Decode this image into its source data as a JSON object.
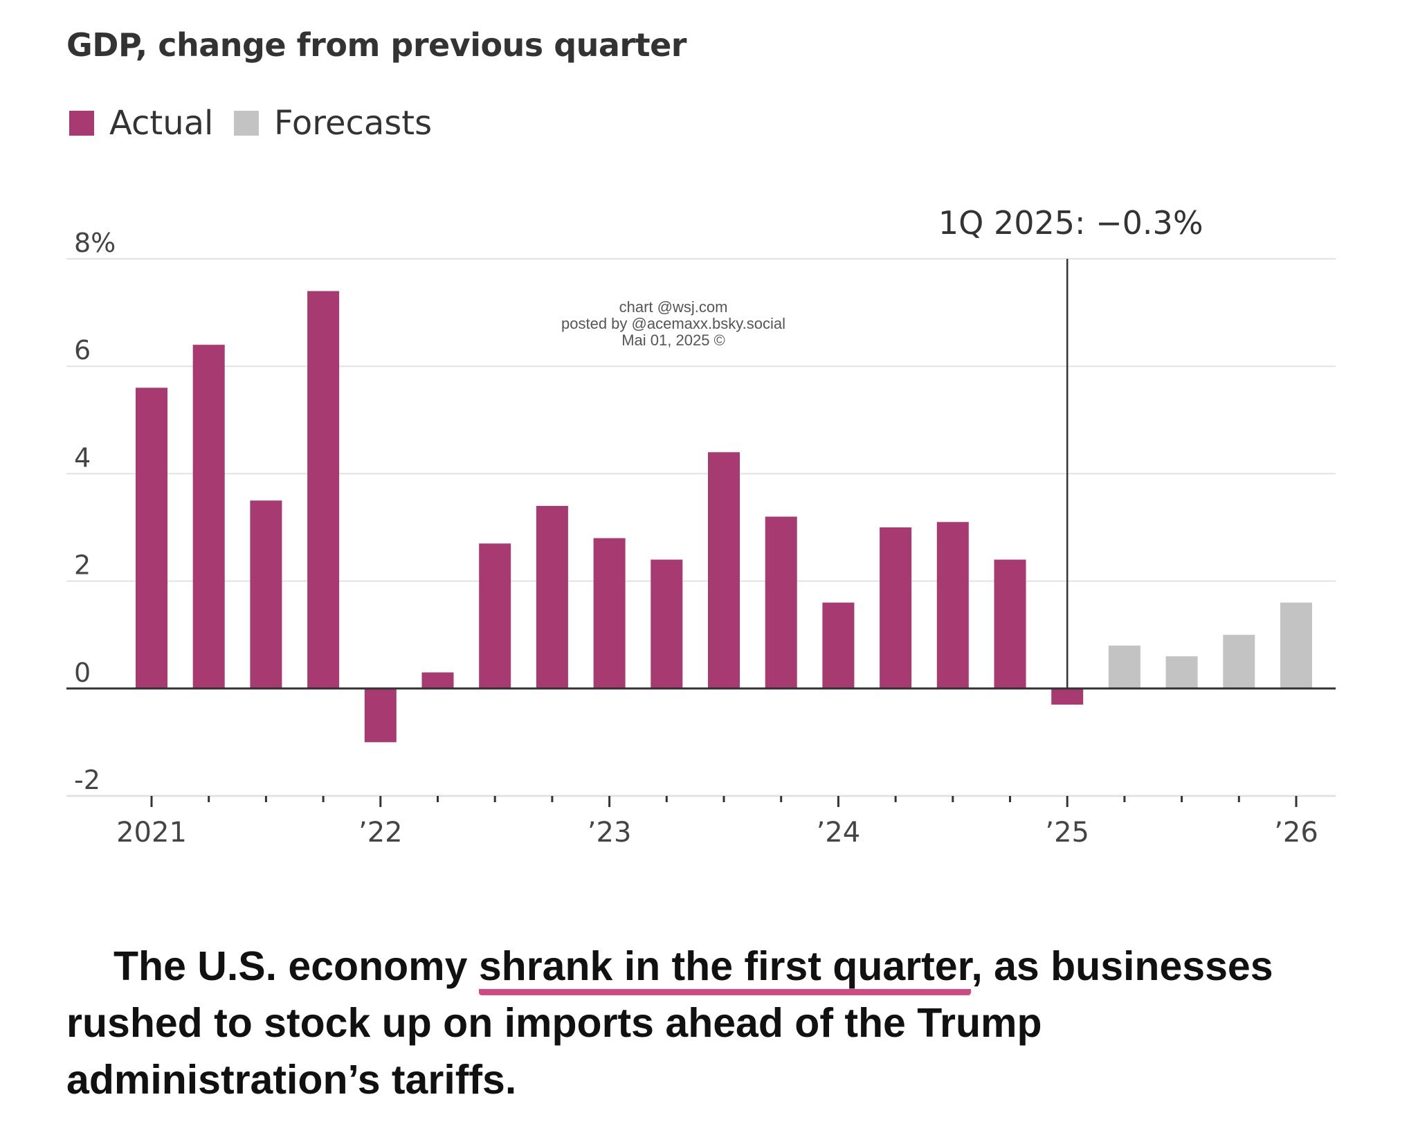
{
  "colors": {
    "actual": "#a63a71",
    "forecast": "#c3c3c3",
    "grid": "#e2e2e2",
    "axis": "#333333",
    "highlight_underline": "#d04a82"
  },
  "chart_data": {
    "type": "bar",
    "title": "GDP, change from previous quarter",
    "legend": [
      {
        "name": "Actual",
        "color": "#a63a71"
      },
      {
        "name": "Forecasts",
        "color": "#c3c3c3"
      }
    ],
    "legend_placement": "top-left",
    "ylim": [
      -2,
      8
    ],
    "yticks": [
      {
        "value": 8,
        "label": "8%"
      },
      {
        "value": 6,
        "label": "6"
      },
      {
        "value": 4,
        "label": "4"
      },
      {
        "value": 2,
        "label": "2"
      },
      {
        "value": 0,
        "label": "0"
      },
      {
        "value": -2,
        "label": "-2"
      }
    ],
    "xtick_labels": [
      {
        "quarter_index": 0,
        "label": "2021"
      },
      {
        "quarter_index": 4,
        "label": "’22"
      },
      {
        "quarter_index": 8,
        "label": "’23"
      },
      {
        "quarter_index": 12,
        "label": "’24"
      },
      {
        "quarter_index": 16,
        "label": "’25"
      },
      {
        "quarter_index": 20,
        "label": "’26"
      }
    ],
    "grid": true,
    "series": [
      {
        "name": "Actual",
        "color": "#a63a71",
        "x": [
          "1Q 2021",
          "2Q 2021",
          "3Q 2021",
          "4Q 2021",
          "1Q 2022",
          "2Q 2022",
          "3Q 2022",
          "4Q 2022",
          "1Q 2023",
          "2Q 2023",
          "3Q 2023",
          "4Q 2023",
          "1Q 2024",
          "2Q 2024",
          "3Q 2024",
          "4Q 2024",
          "1Q 2025"
        ],
        "values": [
          5.6,
          6.4,
          3.5,
          7.4,
          -1.0,
          0.3,
          2.7,
          3.4,
          2.8,
          2.4,
          4.4,
          3.2,
          1.6,
          3.0,
          3.1,
          2.4,
          -0.3
        ]
      },
      {
        "name": "Forecasts",
        "color": "#c3c3c3",
        "x": [
          "2Q 2025",
          "3Q 2025",
          "4Q 2025",
          "1Q 2026"
        ],
        "values": [
          0.8,
          0.6,
          1.0,
          1.6
        ]
      }
    ],
    "annotation": {
      "text": "1Q 2025: −0.3%",
      "quarter_index": 16
    }
  },
  "watermark": [
    "chart @wsj.com",
    "posted by @acemaxx.bsky.social",
    "Mai 01, 2025 ©"
  ],
  "caption": {
    "before": "The U.S. economy ",
    "highlight": "shrank in the first quarter",
    "after": ", as businesses rushed to stock up on imports ahead of the Trump administration’s tariffs."
  }
}
